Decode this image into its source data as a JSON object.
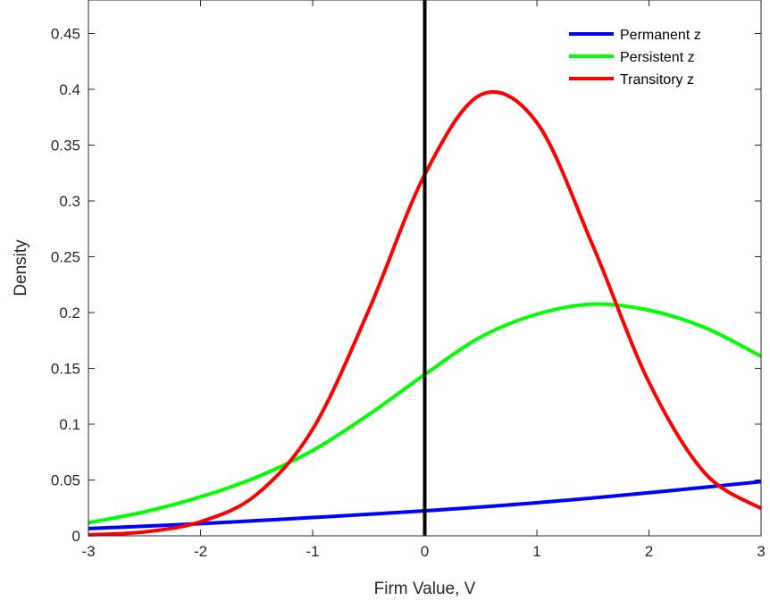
{
  "chart_data": {
    "type": "line",
    "title": "",
    "xlabel": "Firm Value, V",
    "ylabel": "Density",
    "xlim": [
      -3,
      3
    ],
    "ylim": [
      0,
      0.48
    ],
    "x_ticks": [
      -3,
      -2,
      -1,
      0,
      1,
      2,
      3
    ],
    "x_tick_labels": [
      "-3",
      "-2",
      "-1",
      "0",
      "1",
      "2",
      "3"
    ],
    "y_ticks": [
      0,
      0.05,
      0.1,
      0.15,
      0.2,
      0.25,
      0.3,
      0.35,
      0.4,
      0.45
    ],
    "y_tick_labels": [
      "0",
      "0.05",
      "0.1",
      "0.15",
      "0.2",
      "0.25",
      "0.3",
      "0.35",
      "0.4",
      "0.45"
    ],
    "grid": false,
    "legend_position": "top-right",
    "vertical_line": {
      "x": 0,
      "color": "#000000"
    },
    "x": [
      -3,
      -2.5,
      -2,
      -1.5,
      -1,
      -0.5,
      0,
      0.5,
      1,
      1.5,
      2,
      2.5,
      3
    ],
    "series": [
      {
        "name": "Permanent z",
        "color": "#0000ff",
        "values": [
          0.0065,
          0.0086,
          0.0109,
          0.0136,
          0.0164,
          0.0193,
          0.0224,
          0.0258,
          0.0296,
          0.0339,
          0.0386,
          0.0435,
          0.0485
        ]
      },
      {
        "name": "Persistent z",
        "color": "#00ff00",
        "values": [
          0.0117,
          0.0215,
          0.0349,
          0.0525,
          0.0764,
          0.1085,
          0.1445,
          0.1781,
          0.1985,
          0.2075,
          0.2021,
          0.1865,
          0.1608
        ]
      },
      {
        "name": "Transitory z",
        "color": "#ff0000",
        "values": [
          0.0008,
          0.0035,
          0.0126,
          0.037,
          0.0955,
          0.202,
          0.3236,
          0.3951,
          0.3702,
          0.2598,
          0.1376,
          0.056,
          0.0245
        ]
      }
    ]
  }
}
